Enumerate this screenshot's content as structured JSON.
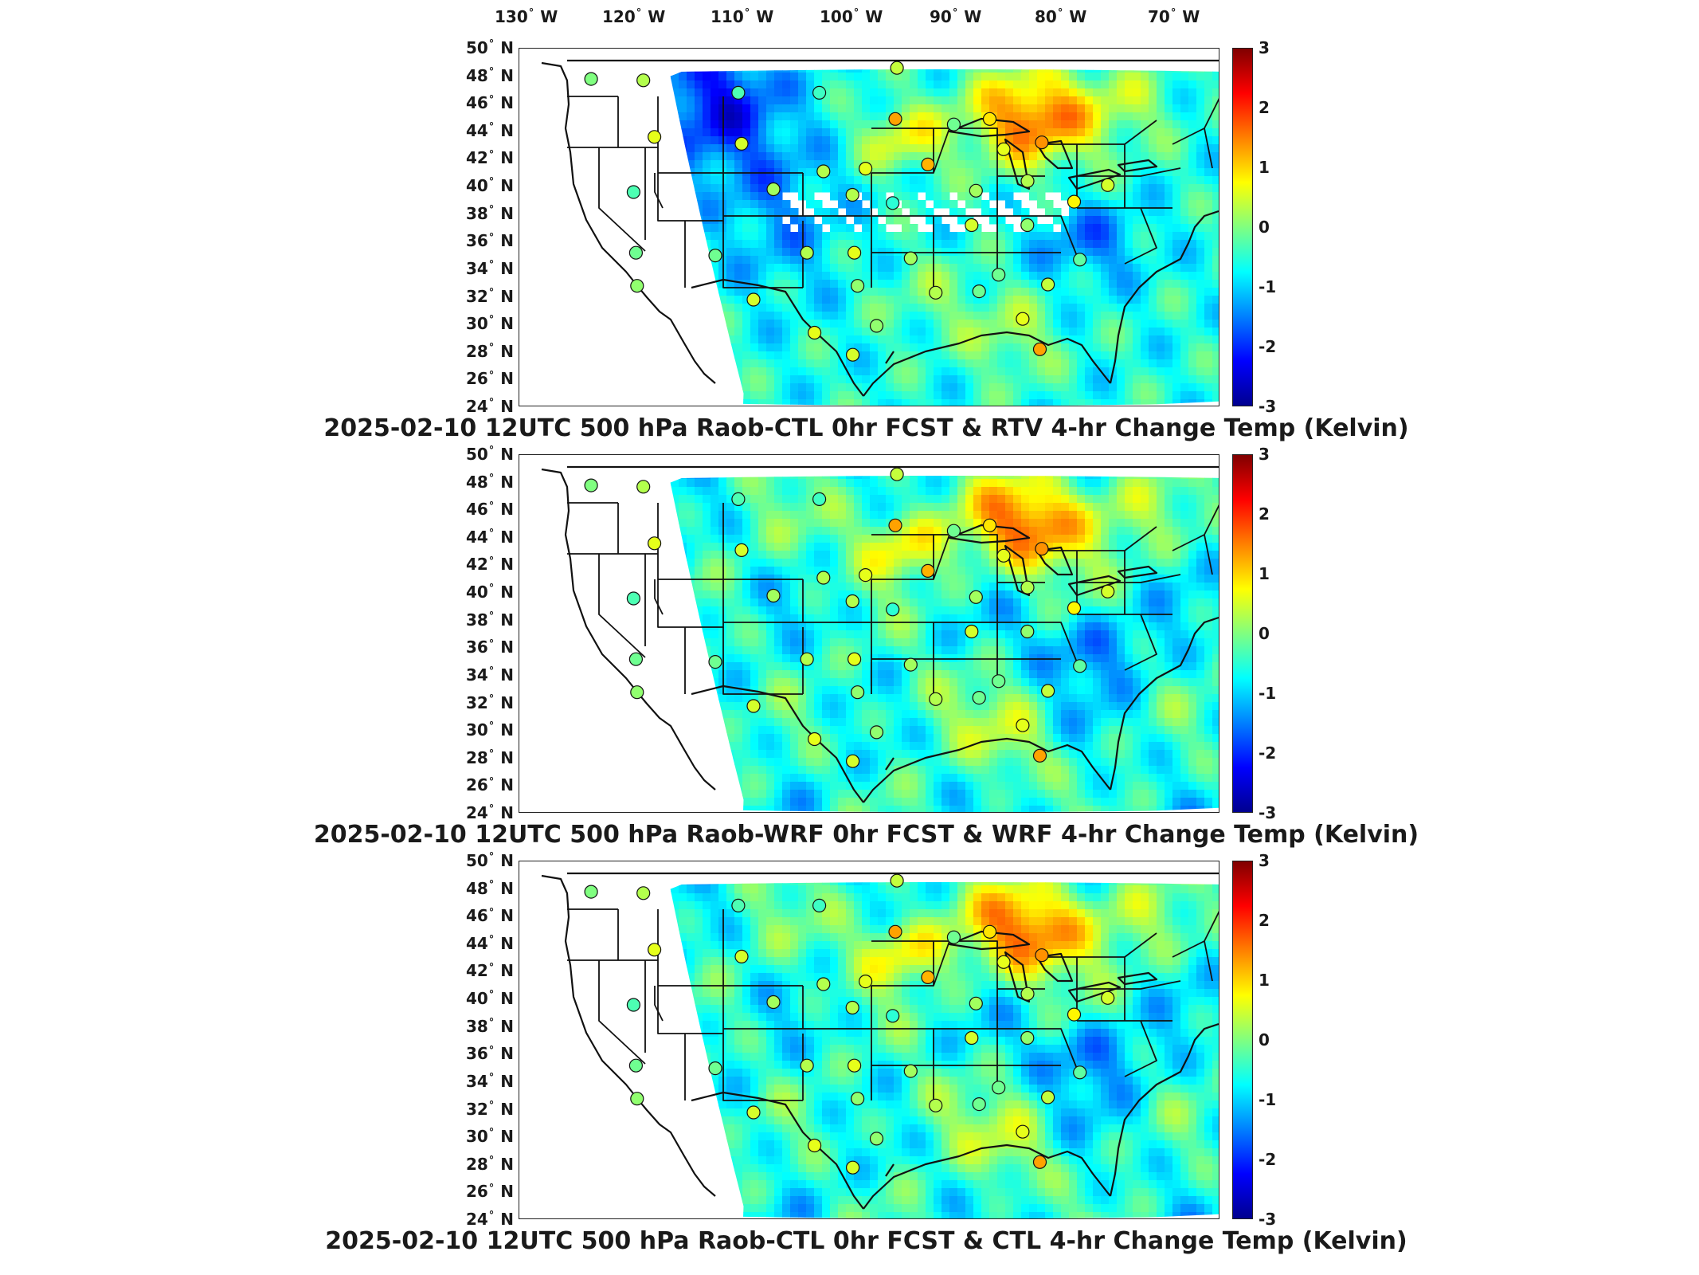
{
  "longitude_labels": [
    {
      "value": "130",
      "hem": "W"
    },
    {
      "value": "120",
      "hem": "W"
    },
    {
      "value": "110",
      "hem": "W"
    },
    {
      "value": "100",
      "hem": "W"
    },
    {
      "value": "90",
      "hem": "W"
    },
    {
      "value": "80",
      "hem": "W"
    },
    {
      "value": "70",
      "hem": "W"
    }
  ],
  "latitude_labels": [
    {
      "value": "50",
      "hem": "N"
    },
    {
      "value": "48",
      "hem": "N"
    },
    {
      "value": "46",
      "hem": "N"
    },
    {
      "value": "44",
      "hem": "N"
    },
    {
      "value": "42",
      "hem": "N"
    },
    {
      "value": "40",
      "hem": "N"
    },
    {
      "value": "38",
      "hem": "N"
    },
    {
      "value": "36",
      "hem": "N"
    },
    {
      "value": "34",
      "hem": "N"
    },
    {
      "value": "32",
      "hem": "N"
    },
    {
      "value": "30",
      "hem": "N"
    },
    {
      "value": "28",
      "hem": "N"
    },
    {
      "value": "26",
      "hem": "N"
    },
    {
      "value": "24",
      "hem": "N"
    }
  ],
  "degree_symbol": "°",
  "colorbar": {
    "min": -3,
    "max": 3,
    "ticks": [
      "3",
      "2",
      "1",
      "0",
      "-1",
      "-2",
      "-3"
    ],
    "colormap": [
      "#00008f",
      "#0000ff",
      "#0080ff",
      "#00ffff",
      "#80ff80",
      "#ffff00",
      "#ff8000",
      "#ff0000",
      "#800000"
    ]
  },
  "panels": [
    {
      "title": "2025-02-10 12UTC 500 hPa Raob-CTL 0hr FCST & RTV 4-hr Change Temp (Kelvin)",
      "variant": "rtv"
    },
    {
      "title": "2025-02-10 12UTC 500 hPa Raob-WRF 0hr FCST & WRF 4-hr Change Temp (Kelvin)",
      "variant": "wrf"
    },
    {
      "title": "2025-02-10 12UTC 500 hPa Raob-CTL 0hr FCST & CTL 4-hr Change Temp (Kelvin)",
      "variant": "ctl"
    }
  ],
  "raob_stations": [
    {
      "lon": -122.6,
      "lat": 47.8,
      "v": 0.0
    },
    {
      "lon": -117.6,
      "lat": 47.7,
      "v": 0.3
    },
    {
      "lon": -108.5,
      "lat": 46.8,
      "v": -0.3
    },
    {
      "lon": -100.8,
      "lat": 46.8,
      "v": -0.4
    },
    {
      "lon": -93.4,
      "lat": 48.6,
      "v": 0.4
    },
    {
      "lon": -93.6,
      "lat": 44.9,
      "v": 1.3
    },
    {
      "lon": -88.1,
      "lat": 44.5,
      "v": -0.1
    },
    {
      "lon": -84.7,
      "lat": 44.9,
      "v": 0.9
    },
    {
      "lon": -83.5,
      "lat": 42.7,
      "v": 0.6
    },
    {
      "lon": -79.9,
      "lat": 43.2,
      "v": 1.4
    },
    {
      "lon": -116.2,
      "lat": 43.6,
      "v": 0.6
    },
    {
      "lon": -108.0,
      "lat": 43.1,
      "v": 0.5
    },
    {
      "lon": -100.3,
      "lat": 41.1,
      "v": 0.3
    },
    {
      "lon": -96.4,
      "lat": 41.3,
      "v": 0.6
    },
    {
      "lon": -90.6,
      "lat": 41.6,
      "v": 1.2
    },
    {
      "lon": -86.2,
      "lat": 39.7,
      "v": 0.2
    },
    {
      "lon": -81.4,
      "lat": 40.4,
      "v": 0.3
    },
    {
      "lon": -77.2,
      "lat": 38.9,
      "v": 0.8
    },
    {
      "lon": -74.0,
      "lat": 40.1,
      "v": 0.5
    },
    {
      "lon": -117.8,
      "lat": 39.6,
      "v": -0.3
    },
    {
      "lon": -104.9,
      "lat": 39.8,
      "v": 0.2
    },
    {
      "lon": -97.6,
      "lat": 39.4,
      "v": 0.3
    },
    {
      "lon": -93.9,
      "lat": 38.8,
      "v": -0.5
    },
    {
      "lon": -86.7,
      "lat": 37.2,
      "v": 0.5
    },
    {
      "lon": -81.6,
      "lat": 37.2,
      "v": 0.1
    },
    {
      "lon": -117.2,
      "lat": 35.2,
      "v": -0.1
    },
    {
      "lon": -110.0,
      "lat": 35.0,
      "v": -0.1
    },
    {
      "lon": -101.7,
      "lat": 35.2,
      "v": 0.3
    },
    {
      "lon": -97.4,
      "lat": 35.2,
      "v": 0.6
    },
    {
      "lon": -92.3,
      "lat": 34.8,
      "v": 0.2
    },
    {
      "lon": -84.4,
      "lat": 33.6,
      "v": -0.1
    },
    {
      "lon": -80.0,
      "lat": 32.9,
      "v": 0.4
    },
    {
      "lon": -77.0,
      "lat": 34.7,
      "v": -0.2
    },
    {
      "lon": -116.9,
      "lat": 32.8,
      "v": 0.1
    },
    {
      "lon": -106.4,
      "lat": 31.8,
      "v": 0.5
    },
    {
      "lon": -97.1,
      "lat": 32.8,
      "v": 0.1
    },
    {
      "lon": -90.1,
      "lat": 32.3,
      "v": 0.3
    },
    {
      "lon": -86.2,
      "lat": 32.4,
      "v": -0.1
    },
    {
      "lon": -100.9,
      "lat": 29.4,
      "v": 0.6
    },
    {
      "lon": -95.4,
      "lat": 29.9,
      "v": 0.1
    },
    {
      "lon": -82.4,
      "lat": 30.4,
      "v": 0.6
    },
    {
      "lon": -97.5,
      "lat": 27.8,
      "v": 0.5
    },
    {
      "lon": -81.0,
      "lat": 28.2,
      "v": 1.3
    }
  ]
}
